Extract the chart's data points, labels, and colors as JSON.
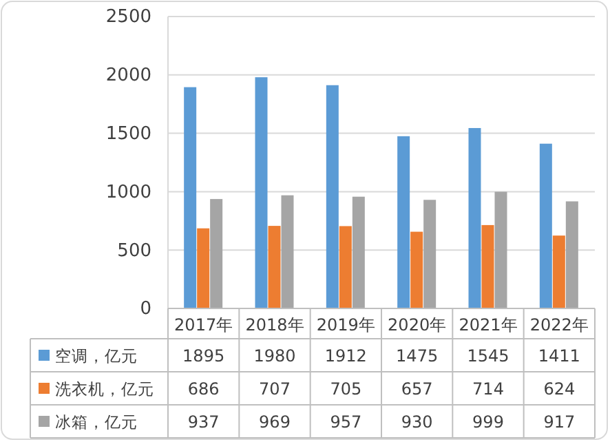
{
  "chart_data": {
    "type": "bar",
    "categories": [
      "2017年",
      "2018年",
      "2019年",
      "2020年",
      "2021年",
      "2022年"
    ],
    "series": [
      {
        "name": "空调，亿元",
        "color": "#5b9bd5",
        "values": [
          1895,
          1980,
          1912,
          1475,
          1545,
          1411
        ]
      },
      {
        "name": "洗衣机，亿元",
        "color": "#ed7d31",
        "values": [
          686,
          707,
          705,
          657,
          714,
          624
        ]
      },
      {
        "name": "冰箱，亿元",
        "color": "#a5a5a5",
        "values": [
          937,
          969,
          957,
          930,
          999,
          917
        ]
      }
    ],
    "ylim": [
      0,
      2500
    ],
    "yticks": [
      0,
      500,
      1000,
      1500,
      2000,
      2500
    ],
    "grid": "y",
    "legend": "bottom",
    "data_labels": true
  }
}
